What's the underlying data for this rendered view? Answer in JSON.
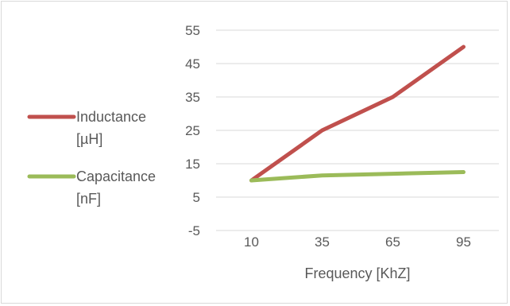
{
  "chart_data": {
    "type": "line",
    "categories": [
      "10",
      "35",
      "65",
      "95"
    ],
    "series": [
      {
        "name": "Inductance [µH]",
        "legend_lines": [
          "Inductance",
          "[µH]"
        ],
        "color": "#c0504d",
        "values": [
          10,
          25,
          35,
          50
        ]
      },
      {
        "name": "Capacitance [nF]",
        "legend_lines": [
          "Capacitance",
          "[nF]"
        ],
        "color": "#9bbb59",
        "values": [
          10,
          11.5,
          12,
          12.5
        ]
      }
    ],
    "title": "",
    "xlabel": "Frequency [KhZ]",
    "ylabel": "",
    "ylim": [
      -5,
      55
    ],
    "yticks": [
      "55",
      "45",
      "35",
      "25",
      "15",
      "5",
      "-5"
    ],
    "grid": true,
    "legend_position": "left",
    "grid_color": "#d9d9d9"
  }
}
